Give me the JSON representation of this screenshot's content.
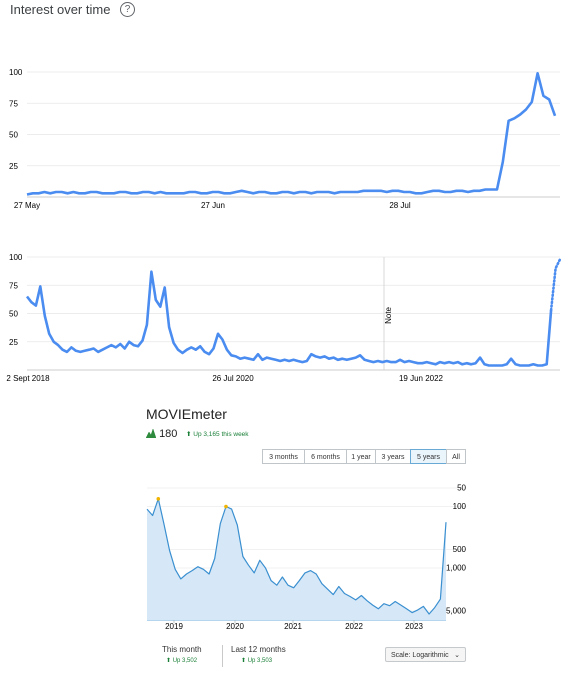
{
  "header": {
    "title": "Interest over time",
    "help_icon": "question-circle-icon"
  },
  "chart_data": [
    {
      "type": "line",
      "x_ticks": [
        "27 May",
        "27 Jun",
        "28 Jul"
      ],
      "y_ticks": [
        "25",
        "50",
        "75",
        "100"
      ],
      "ylim": [
        0,
        100
      ],
      "grid": true,
      "color": "#4a8cf0",
      "series": [
        {
          "values": [
            2,
            3,
            3,
            4,
            3,
            4,
            4,
            3,
            4,
            3,
            3,
            4,
            4,
            3,
            3,
            3,
            4,
            4,
            3,
            3,
            4,
            4,
            3,
            4,
            3,
            3,
            3,
            3,
            4,
            4,
            3,
            3,
            4,
            4,
            3,
            3,
            4,
            5,
            4,
            3,
            4,
            4,
            3,
            3,
            4,
            4,
            3,
            4,
            4,
            3,
            4,
            4,
            4,
            3,
            4,
            4,
            4,
            4,
            5,
            5,
            5,
            5,
            4,
            5,
            5,
            4,
            4,
            3,
            3,
            4,
            5,
            5,
            4,
            4,
            5,
            5,
            4,
            5,
            5,
            6,
            6,
            6,
            28,
            61,
            63,
            66,
            70,
            76,
            99,
            81,
            78,
            65
          ]
        }
      ]
    },
    {
      "type": "line",
      "x_ticks": [
        "2 Sept 2018",
        "26 Jul 2020",
        "19 Jun 2022"
      ],
      "y_ticks": [
        "25",
        "50",
        "75",
        "100"
      ],
      "ylim": [
        0,
        100
      ],
      "annotation": "Note",
      "grid": true,
      "color": "#4a8cf0",
      "series": [
        {
          "values": [
            65,
            60,
            57,
            74,
            48,
            32,
            25,
            22,
            18,
            16,
            20,
            17,
            16,
            17,
            18,
            19,
            16,
            18,
            20,
            22,
            20,
            23,
            19,
            25,
            22,
            21,
            26,
            40,
            87,
            62,
            56,
            73,
            38,
            24,
            18,
            15,
            18,
            20,
            18,
            21,
            16,
            14,
            19,
            32,
            27,
            18,
            13,
            12,
            10,
            11,
            10,
            9,
            14,
            9,
            11,
            10,
            9,
            8,
            9,
            8,
            9,
            8,
            7,
            8,
            14,
            12,
            11,
            12,
            10,
            11,
            9,
            10,
            9,
            10,
            11,
            13,
            9,
            8,
            7,
            8,
            7,
            8,
            7,
            7,
            9,
            7,
            8,
            7,
            6,
            6,
            7,
            6,
            5,
            7,
            6,
            7,
            6,
            7,
            5,
            6,
            5,
            6,
            11,
            5,
            4,
            4,
            4,
            4,
            5,
            10,
            5,
            4,
            4,
            4,
            5,
            4,
            4,
            5,
            53,
            90,
            98
          ]
        }
      ],
      "series_last_dotted": true
    },
    {
      "type": "area",
      "y_scale": "log",
      "y_reversed": true,
      "x_ticks": [
        "2019",
        "2020",
        "2021",
        "2022",
        "2023"
      ],
      "y_ticks": [
        "50",
        "100",
        "500",
        "1,000",
        "5,000"
      ],
      "color": "#3a8fd0",
      "fill": "#d6e8f7",
      "series": [
        {
          "values": [
            110,
            140,
            75,
            190,
            520,
            1050,
            1500,
            1250,
            1100,
            950,
            1050,
            1250,
            700,
            190,
            100,
            110,
            200,
            650,
            900,
            1200,
            750,
            1000,
            1600,
            1900,
            1400,
            1900,
            2100,
            1600,
            1200,
            1100,
            1250,
            1800,
            2200,
            2700,
            2000,
            2600,
            2900,
            3300,
            2800,
            3400,
            4000,
            4600,
            3800,
            4100,
            3500,
            4000,
            4600,
            5300,
            4800,
            4200,
            5600,
            4400,
            3200,
            180
          ]
        }
      ]
    }
  ],
  "moviemeter": {
    "title": "MOVIEmeter",
    "rank": "180",
    "week_change": "Up 3,165 this week",
    "ranges": [
      "3 months",
      "6 months",
      "1 year",
      "3 years",
      "5 years",
      "All"
    ],
    "active_range": "5 years",
    "this_month_label": "This month",
    "this_month_value": "Up 3,502",
    "last12_label": "Last 12 months",
    "last12_value": "Up 3,503",
    "scale_label": "Scale:",
    "scale_value": "Logarithmic",
    "trend_icon": "sparkline-icon",
    "up_arrow_icon": "up-arrow-icon",
    "chevron_icon": "chevron-down-icon"
  }
}
